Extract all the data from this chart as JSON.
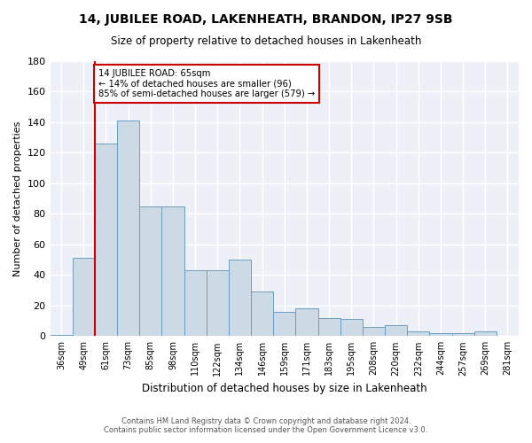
{
  "title": "14, JUBILEE ROAD, LAKENHEATH, BRANDON, IP27 9SB",
  "subtitle": "Size of property relative to detached houses in Lakenheath",
  "xlabel": "Distribution of detached houses by size in Lakenheath",
  "ylabel": "Number of detached properties",
  "categories": [
    "36sqm",
    "49sqm",
    "61sqm",
    "73sqm",
    "85sqm",
    "98sqm",
    "110sqm",
    "122sqm",
    "134sqm",
    "146sqm",
    "159sqm",
    "171sqm",
    "183sqm",
    "195sqm",
    "208sqm",
    "220sqm",
    "232sqm",
    "244sqm",
    "257sqm",
    "269sqm",
    "281sqm"
  ],
  "values": [
    1,
    51,
    126,
    141,
    85,
    85,
    43,
    43,
    50,
    29,
    16,
    18,
    12,
    11,
    6,
    7,
    3,
    2,
    2,
    3,
    0
  ],
  "bar_color": "#cdd9e5",
  "bar_edge_color": "#6a9fc0",
  "annotation_text_line1": "14 JUBILEE ROAD: 65sqm",
  "annotation_text_line2": "← 14% of detached houses are smaller (96)",
  "annotation_text_line3": "85% of semi-detached houses are larger (579) →",
  "annotation_box_color": "#cc0000",
  "vline_color": "#cc0000",
  "footer1": "Contains HM Land Registry data © Crown copyright and database right 2024.",
  "footer2": "Contains public sector information licensed under the Open Government Licence v3.0.",
  "ylim": [
    0,
    180
  ],
  "yticks": [
    0,
    20,
    40,
    60,
    80,
    100,
    120,
    140,
    160,
    180
  ],
  "background_color": "#edf1f7"
}
